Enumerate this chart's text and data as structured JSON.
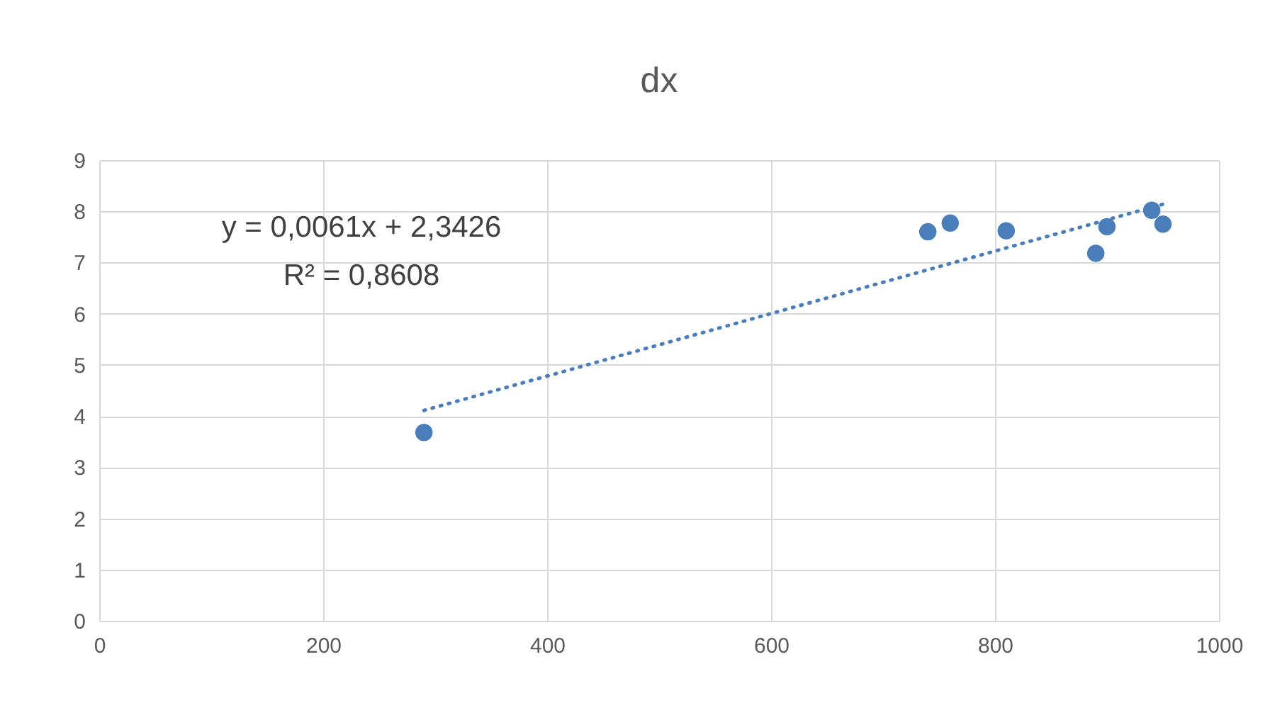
{
  "chart_data": {
    "type": "scatter",
    "title": "dx",
    "series": [
      {
        "color": "#4a7ebb",
        "x": [
          290,
          740,
          760,
          810,
          890,
          900,
          940,
          950
        ],
        "values": [
          3.68,
          7.6,
          7.77,
          7.62,
          7.18,
          7.7,
          8.02,
          7.75
        ]
      },
      {
        "type": "line",
        "color": "#4a7ebb",
        "line_style": "dotted",
        "marker": "none",
        "x": [
          290,
          950
        ],
        "values": [
          4.11,
          8.14
        ]
      }
    ],
    "annotations": [
      "y = 0,0061x + 2,3426",
      "R² = 0,8608"
    ],
    "xlim": [
      0,
      1000
    ],
    "xticks": [
      0,
      200,
      400,
      600,
      800,
      1000
    ],
    "ylim": [
      0,
      9
    ],
    "yticks": [
      0,
      1,
      2,
      3,
      4,
      5,
      6,
      7,
      8,
      9
    ],
    "grid": true,
    "marker": "circle",
    "legend": false
  }
}
